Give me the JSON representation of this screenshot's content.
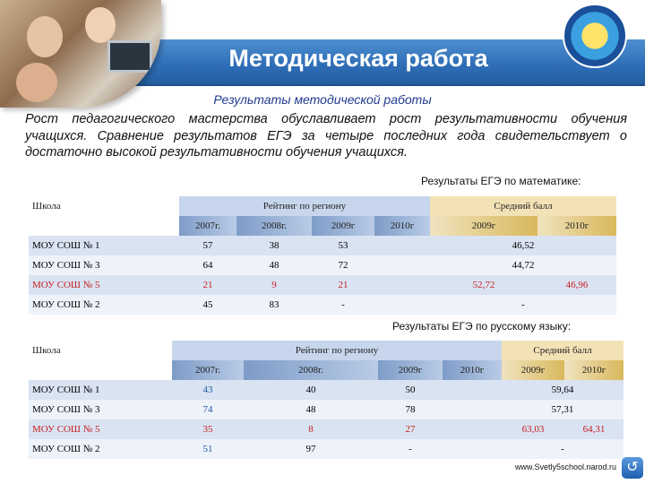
{
  "header": {
    "title": "Методическая работа"
  },
  "subtitle": "Результаты методической работы",
  "paragraph": "Рост педагогического мастерства обуславливает рост результативности обучения учащихся. Сравнение результатов ЕГЭ за четыре последних года свидетельствует о достаточно высокой результативности обучения учащихся.",
  "math": {
    "caption": "Результаты ЕГЭ по математике:",
    "head": {
      "school": "Школа",
      "rating": "Рейтинг по региону",
      "avg": "Средний балл"
    },
    "years": [
      "2007г.",
      "2008г.",
      "2009г",
      "2010г",
      "2009г",
      "2010г"
    ],
    "rows": [
      {
        "school": "МОУ СОШ № 1",
        "r2007": "57",
        "r2008": "38",
        "r2009": "53",
        "r2010": "",
        "a2009": "46,52",
        "a2010": ""
      },
      {
        "school": "МОУ СОШ № 3",
        "r2007": "64",
        "r2008": "48",
        "r2009": "72",
        "r2010": "",
        "a2009": "44,72",
        "a2010": ""
      },
      {
        "school": "МОУ СОШ № 5",
        "r2007": "21",
        "r2008": "9",
        "r2009": "21",
        "r2010": "",
        "a2009": "52,72",
        "a2010": "46,96"
      },
      {
        "school": "МОУ СОШ № 2",
        "r2007": "45",
        "r2008": "83",
        "r2009": "-",
        "r2010": "",
        "a2009": "-",
        "a2010": ""
      }
    ]
  },
  "russian": {
    "caption": "Результаты ЕГЭ по русскому языку:",
    "head": {
      "school": "Школа",
      "rating": "Рейтинг по региону",
      "avg": "Средний балл"
    },
    "years": [
      "2007г.",
      "2008г.",
      "2009г",
      "2010г",
      "2009г",
      "2010г"
    ],
    "rows": [
      {
        "school": "МОУ СОШ № 1",
        "r2007": "43",
        "r2008": "40",
        "r2009": "50",
        "r2010": "",
        "a2009": "59,64",
        "a2010": ""
      },
      {
        "school": "МОУ СОШ № 3",
        "r2007": "74",
        "r2008": "48",
        "r2009": "78",
        "r2010": "",
        "a2009": "57,31",
        "a2010": ""
      },
      {
        "school": "МОУ СОШ № 5",
        "r2007": "35",
        "r2008": "8",
        "r2009": "27",
        "r2010": "",
        "a2009": "63,03",
        "a2010": "64,31"
      },
      {
        "school": "МОУ СОШ № 2",
        "r2007": "51",
        "r2008": "97",
        "r2009": "-",
        "r2010": "",
        "a2009": "-",
        "a2010": ""
      }
    ]
  },
  "footer": {
    "url": "www.Svetly5school.narod.ru"
  },
  "icons": {
    "nav": "u-turn-icon",
    "emblem": "school-emblem-icon",
    "photo": "students-photo"
  }
}
